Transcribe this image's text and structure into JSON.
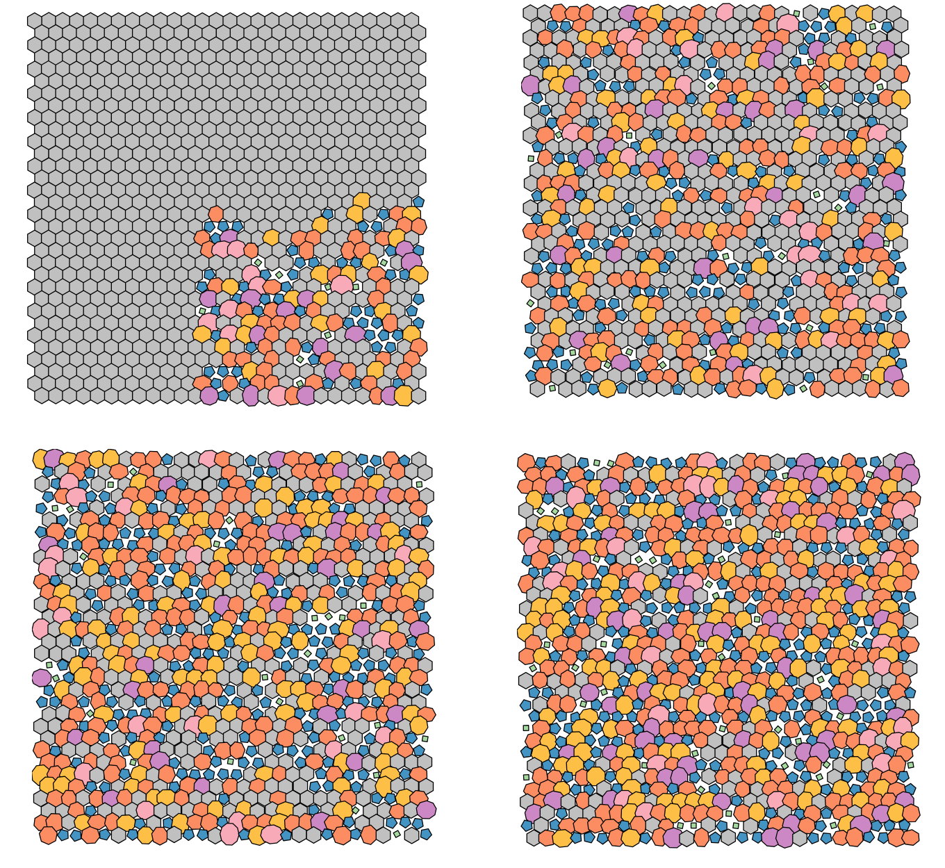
{
  "figure": {
    "description_free": true,
    "panels": [
      {
        "id": "panel-1",
        "stage": 1,
        "defect_fraction": 0.0,
        "defect_region": "lower-right",
        "seed": 7
      },
      {
        "id": "panel-2",
        "stage": 2,
        "defect_fraction": 0.55,
        "defect_region": "all",
        "seed": 19
      },
      {
        "id": "panel-3",
        "stage": 3,
        "defect_fraction": 0.7,
        "defect_region": "all",
        "seed": 31
      },
      {
        "id": "panel-4",
        "stage": 4,
        "defect_fraction": 0.85,
        "defect_region": "all",
        "seed": 47
      }
    ]
  },
  "colors": {
    "hexagon": "#c0c0c0",
    "pentagon": "#4393c3",
    "heptagon": "#fc8d62",
    "octagon": "#fdbf46",
    "nonagon": "#cc88c4",
    "decagon": "#f9aab9",
    "square": "#a6d9a0",
    "edge": "#000000"
  },
  "legend_shown": false,
  "icons": []
}
